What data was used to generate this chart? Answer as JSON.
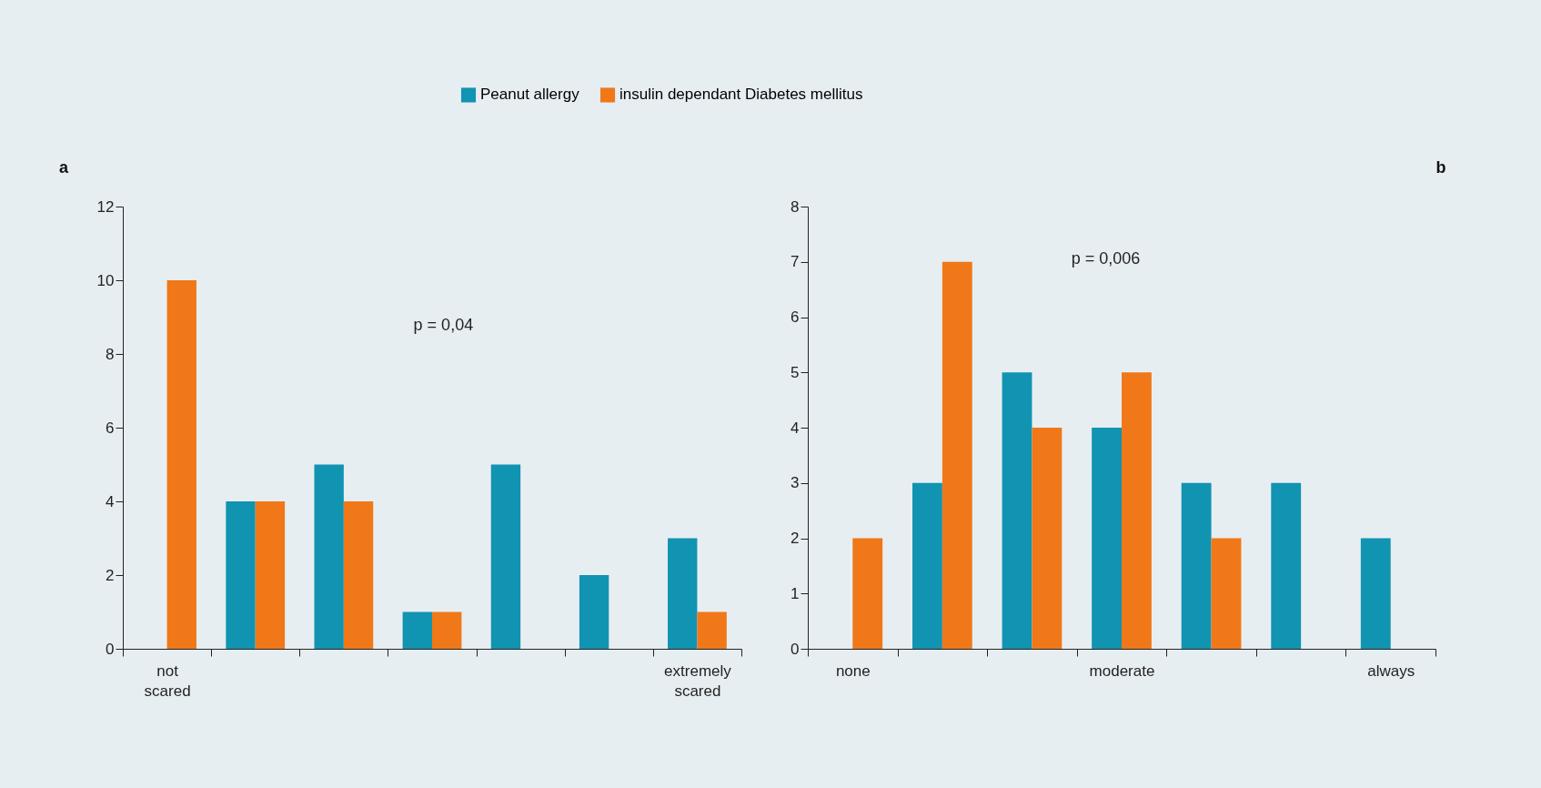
{
  "chart_data": [
    {
      "type": "bar",
      "title": "a",
      "categories": [
        "not scared",
        null,
        null,
        null,
        null,
        null,
        "extremely scared"
      ],
      "series": [
        {
          "name": "Peanut allergy",
          "color": "#1193b2",
          "values": [
            0,
            4,
            5,
            1,
            5,
            2,
            3
          ]
        },
        {
          "name": "insulin dependant Diabetes mellitus",
          "color": "#f07818",
          "values": [
            10,
            4,
            4,
            1,
            0,
            0,
            1
          ]
        }
      ],
      "ylim": [
        0,
        12
      ],
      "yticks": [
        0,
        2,
        4,
        6,
        8,
        10,
        12
      ],
      "legend": "top",
      "annotations": [
        "p = 0,04"
      ]
    },
    {
      "type": "bar",
      "title": "b",
      "categories": [
        "none",
        null,
        null,
        "moderate",
        null,
        null,
        "always"
      ],
      "series": [
        {
          "color": "#1193b2",
          "values": [
            0,
            3,
            5,
            4,
            3,
            3,
            2
          ]
        },
        {
          "color": "#f07818",
          "values": [
            2,
            7,
            4,
            5,
            2,
            0,
            0
          ]
        }
      ],
      "ylim": [
        0,
        8
      ],
      "yticks": [
        0,
        1,
        2,
        3,
        4,
        5,
        6,
        7,
        8
      ],
      "annotations": [
        "p = 0,006"
      ]
    }
  ]
}
